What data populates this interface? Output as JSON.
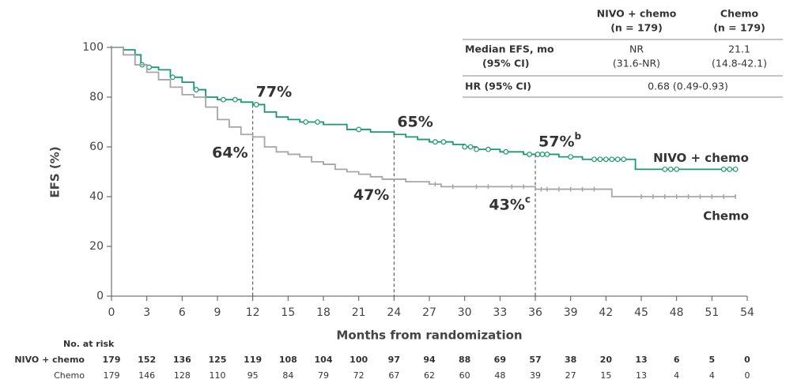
{
  "chart_data": {
    "type": "km",
    "ylabel": "EFS (%)",
    "xlabel": "Months from randomization",
    "xlim": [
      0,
      54
    ],
    "xticks": [
      0,
      3,
      6,
      9,
      12,
      15,
      18,
      21,
      24,
      27,
      30,
      33,
      36,
      39,
      42,
      45,
      48,
      51,
      54
    ],
    "ylim": [
      0,
      100
    ],
    "yticks": [
      0,
      20,
      40,
      60,
      80,
      100
    ],
    "series": [
      {
        "name": "NIVO + chemo",
        "color": "#1a9a6c",
        "x": [
          0,
          1,
          2,
          2.5,
          3,
          4,
          5,
          6,
          7,
          8,
          9,
          10,
          11,
          12,
          13,
          14,
          15,
          16,
          18,
          20,
          22,
          24,
          25,
          26,
          27,
          29,
          30,
          31,
          33,
          35,
          38,
          40,
          44.5,
          53
        ],
        "values": [
          100,
          99,
          97,
          93,
          92,
          91,
          88,
          86,
          83,
          80,
          79,
          79,
          78,
          77,
          74,
          72,
          71,
          70,
          69,
          67,
          66,
          65,
          64,
          63,
          62,
          61,
          60,
          59,
          58,
          57,
          56,
          55,
          51,
          51
        ],
        "censored": [
          2.6,
          3.2,
          5.2,
          7.2,
          9.5,
          10.5,
          12.3,
          16.5,
          17.5,
          21,
          27.5,
          28.2,
          30,
          30.5,
          31,
          32,
          33.5,
          35.5,
          36.2,
          36.6,
          37,
          39,
          41,
          41.5,
          42,
          42.5,
          43,
          43.5,
          47,
          47.5,
          48,
          52,
          52.5,
          53
        ],
        "landmarks": [
          {
            "x": 12,
            "y": 77,
            "label": "77%"
          },
          {
            "x": 24,
            "y": 65,
            "label": "65%"
          },
          {
            "x": 36,
            "y": 57,
            "label": "57%",
            "sup": "b"
          }
        ]
      },
      {
        "name": "Chemo",
        "color": "#a6a6a6",
        "x": [
          0,
          1,
          2,
          3,
          4,
          5,
          6,
          7,
          8,
          9,
          10,
          11,
          12,
          13,
          14,
          15,
          16,
          17,
          18,
          19,
          20,
          21,
          22,
          23,
          25,
          27,
          28,
          36,
          42.5,
          53
        ],
        "values": [
          100,
          97,
          93,
          90,
          87,
          84,
          81,
          80,
          76,
          71,
          68,
          65,
          64,
          60,
          58,
          57,
          56,
          54,
          53,
          51,
          50,
          49,
          48,
          47,
          46,
          45,
          44,
          43,
          40,
          40
        ],
        "censored": [
          27.5,
          29,
          31,
          32,
          34,
          35,
          36.5,
          37,
          38,
          39,
          40,
          41,
          45,
          46,
          47,
          48,
          49,
          50,
          51,
          52,
          53
        ],
        "landmarks": [
          {
            "x": 12,
            "y": 64,
            "label": "64%"
          },
          {
            "x": 24,
            "y": 47,
            "label": "47%"
          },
          {
            "x": 36,
            "y": 43,
            "label": "43%",
            "sup": "c"
          }
        ]
      }
    ]
  },
  "table": {
    "header": [
      "NIVO + chemo",
      "(n = 179)",
      "Chemo",
      "(n = 179)"
    ],
    "rows": [
      [
        "Median EFS, mo",
        "(95% CI)",
        "NR",
        "(31.6-NR)",
        "21.1",
        "(14.8-42.1)"
      ],
      [
        "HR (95% CI)",
        "0.68 (0.49-0.93)"
      ]
    ]
  },
  "risk_table": {
    "title": "No. at risk",
    "rows": [
      {
        "name": "NIVO + chemo",
        "values": [
          179,
          152,
          136,
          125,
          119,
          108,
          104,
          100,
          97,
          94,
          88,
          69,
          57,
          38,
          20,
          13,
          6,
          5,
          0
        ]
      },
      {
        "name": "Chemo",
        "values": [
          179,
          146,
          128,
          110,
          95,
          84,
          79,
          72,
          67,
          62,
          60,
          48,
          39,
          27,
          15,
          13,
          4,
          4,
          0
        ]
      }
    ]
  }
}
